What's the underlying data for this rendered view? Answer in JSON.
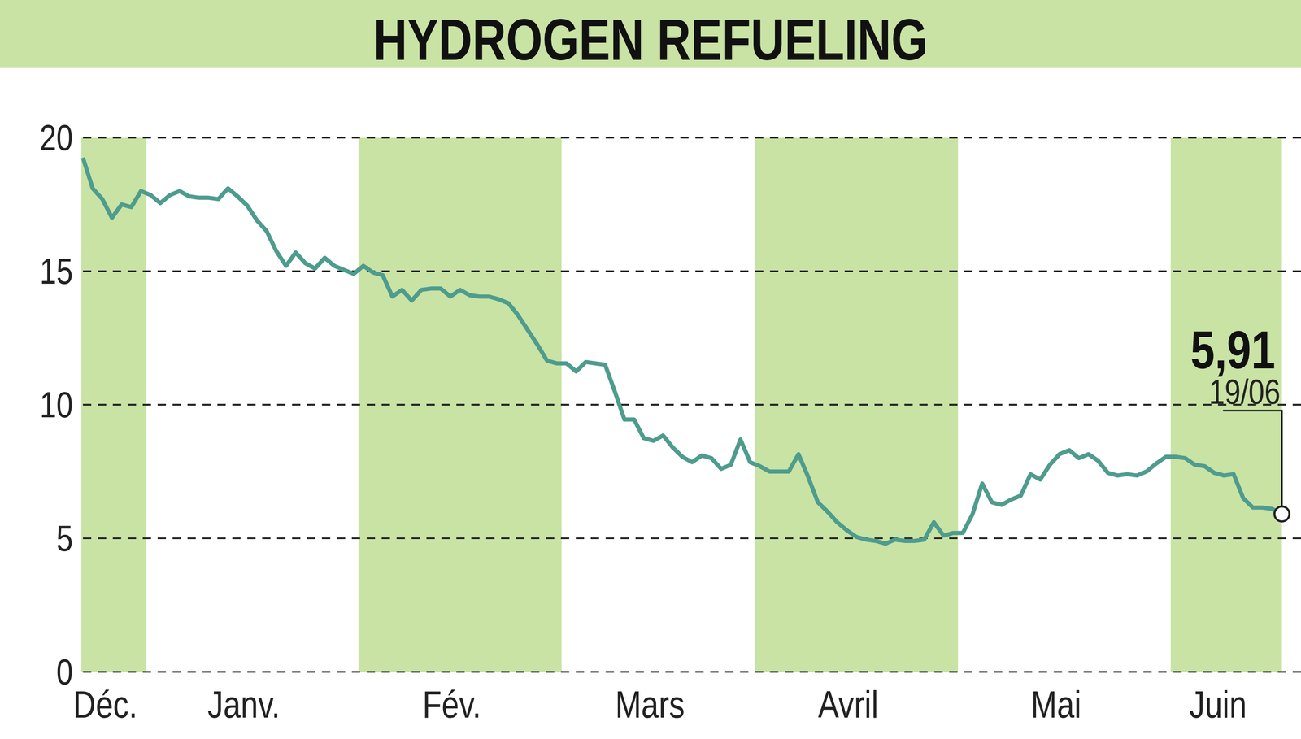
{
  "chart_data": {
    "type": "line",
    "title": "HYDROGEN REFUELING",
    "categories": [
      "Déc.",
      null,
      null,
      null,
      null,
      null,
      null,
      "Janv.",
      null,
      null,
      null,
      null,
      null,
      null,
      null,
      null,
      null,
      null,
      null,
      null,
      null,
      null,
      null,
      null,
      null,
      null,
      null,
      null,
      null,
      "Fév.",
      null,
      null,
      null,
      null,
      null,
      null,
      null,
      null,
      null,
      null,
      null,
      null,
      null,
      null,
      null,
      null,
      null,
      null,
      null,
      null,
      "Mars",
      null,
      null,
      null,
      null,
      null,
      null,
      null,
      null,
      null,
      null,
      null,
      null,
      null,
      null,
      null,
      null,
      null,
      null,
      null,
      "Avril",
      null,
      null,
      null,
      null,
      null,
      null,
      null,
      null,
      null,
      null,
      null,
      null,
      null,
      null,
      null,
      null,
      null,
      null,
      null,
      null,
      "Mai",
      null,
      null,
      null,
      null,
      null,
      null,
      null,
      null,
      null,
      null,
      null,
      null,
      null,
      null,
      null,
      null,
      null,
      null,
      null,
      null,
      null,
      "Juin",
      null,
      null,
      null,
      null,
      null,
      null,
      null,
      null,
      null,
      null,
      null
    ],
    "values": [
      19.25,
      18.1,
      17.7,
      17.0,
      17.5,
      17.4,
      18.0,
      17.85,
      17.55,
      17.85,
      18.0,
      17.8,
      17.75,
      17.75,
      17.7,
      18.1,
      17.8,
      17.45,
      16.9,
      16.5,
      15.75,
      15.2,
      15.7,
      15.3,
      15.1,
      15.5,
      15.2,
      15.05,
      14.9,
      15.2,
      14.95,
      14.85,
      14.05,
      14.3,
      13.9,
      14.3,
      14.35,
      14.35,
      14.05,
      14.3,
      14.1,
      14.05,
      14.05,
      13.95,
      13.8,
      13.35,
      12.8,
      12.25,
      11.65,
      11.55,
      11.55,
      11.25,
      11.6,
      11.55,
      11.5,
      10.5,
      9.45,
      9.45,
      8.75,
      8.65,
      8.85,
      8.4,
      8.05,
      7.85,
      8.1,
      8.0,
      7.6,
      7.75,
      8.7,
      7.85,
      7.7,
      7.5,
      7.5,
      7.5,
      8.15,
      7.3,
      6.35,
      6.0,
      5.6,
      5.3,
      5.05,
      4.95,
      4.9,
      4.8,
      4.95,
      4.9,
      4.9,
      4.95,
      5.6,
      5.1,
      5.2,
      5.2,
      5.9,
      7.05,
      6.35,
      6.25,
      6.45,
      6.6,
      7.4,
      7.2,
      7.75,
      8.15,
      8.3,
      8.0,
      8.15,
      7.9,
      7.45,
      7.35,
      7.4,
      7.35,
      7.5,
      7.8,
      8.05,
      8.05,
      8.0,
      7.75,
      7.7,
      7.45,
      7.35,
      7.4,
      6.5,
      6.15,
      6.15,
      6.1,
      5.91
    ],
    "color": "#4e9c8e",
    "ylim": [
      0,
      20
    ],
    "yticks": [
      0,
      5,
      10,
      15,
      20
    ],
    "grid": true,
    "annotations": [
      {
        "text": "5,91",
        "subtext": "19/06"
      }
    ]
  }
}
